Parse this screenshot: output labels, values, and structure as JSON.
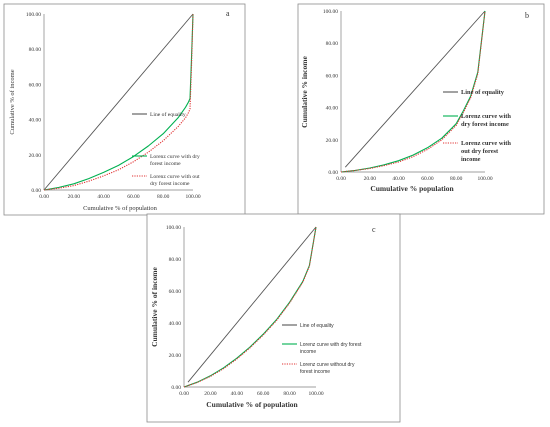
{
  "chart_data": [
    {
      "type": "line",
      "panel_label": "a",
      "xlabel": "Cumulative % of population",
      "ylabel": "Cumulative % of income",
      "xticks": [
        "0.00",
        "20.00",
        "40.00",
        "60.00",
        "80.00",
        "100.00"
      ],
      "yticks": [
        "0.00",
        "20.00",
        "40.00",
        "60.00",
        "80.00",
        "100.00"
      ],
      "xlim": [
        0,
        100
      ],
      "ylim": [
        0,
        100
      ],
      "grid": false,
      "legend_position": "right",
      "series": [
        {
          "name": "Line of equality",
          "color": "#555555",
          "style": "solid",
          "x": [
            0,
            100
          ],
          "y": [
            0,
            100
          ]
        },
        {
          "name": "Lorenz curve with dry forest income",
          "color": "#00b050",
          "style": "solid",
          "x": [
            0,
            10,
            20,
            30,
            40,
            50,
            60,
            70,
            80,
            90,
            95,
            97,
            98,
            99,
            100
          ],
          "y": [
            0,
            1.5,
            3.5,
            6.5,
            10,
            14,
            19,
            25,
            32,
            41,
            47,
            50,
            52,
            75,
            100
          ]
        },
        {
          "name": "Lorenz curve with out dry forest income",
          "color": "#e03030",
          "style": "dotted",
          "x": [
            0,
            10,
            20,
            30,
            40,
            50,
            60,
            70,
            80,
            90,
            95,
            97,
            98,
            99,
            100
          ],
          "y": [
            0,
            1,
            2.5,
            5,
            8,
            11.5,
            16,
            21.5,
            28,
            36,
            41,
            44,
            46,
            70,
            100
          ]
        }
      ]
    },
    {
      "type": "line",
      "panel_label": "b",
      "xlabel": "Cumulative % population",
      "ylabel": "Cumulative % income",
      "xticks": [
        "0.00",
        "20.00",
        "40.00",
        "60.00",
        "80.00",
        "100.00"
      ],
      "yticks": [
        "0.00",
        "20.00",
        "40.00",
        "60.00",
        "80.00",
        "100.00"
      ],
      "xlim": [
        0,
        100
      ],
      "ylim": [
        0,
        100
      ],
      "grid": false,
      "legend_position": "right",
      "series": [
        {
          "name": "Line of equality",
          "color": "#555555",
          "style": "solid",
          "x": [
            3,
            100
          ],
          "y": [
            3,
            100
          ]
        },
        {
          "name": "Lorenz curve with dry forest income",
          "color": "#00b050",
          "style": "solid",
          "x": [
            0,
            10,
            20,
            30,
            40,
            50,
            60,
            70,
            80,
            85,
            90,
            95,
            100
          ],
          "y": [
            0,
            1,
            2.5,
            4.5,
            7,
            10.5,
            15,
            21,
            30,
            38,
            47,
            62,
            100
          ]
        },
        {
          "name": "Lorenz curve with out dry forest income",
          "color": "#e03030",
          "style": "dotted",
          "x": [
            0,
            10,
            20,
            30,
            40,
            50,
            60,
            70,
            80,
            85,
            90,
            95,
            100
          ],
          "y": [
            0,
            1,
            2.2,
            4,
            6.2,
            9.5,
            14,
            20,
            29,
            37,
            46,
            61,
            100
          ]
        }
      ]
    },
    {
      "type": "line",
      "panel_label": "c",
      "xlabel": "Cumulative % of population",
      "ylabel": "Cumulative % of income",
      "xticks": [
        "0.00",
        "20.00",
        "40.00",
        "60.00",
        "80.00",
        "100.00"
      ],
      "yticks": [
        "0.00",
        "20.00",
        "40.00",
        "60.00",
        "80.00",
        "100.00"
      ],
      "xlim": [
        0,
        100
      ],
      "ylim": [
        0,
        100
      ],
      "grid": false,
      "legend_position": "right",
      "series": [
        {
          "name": "Line of equality",
          "color": "#555555",
          "style": "solid",
          "x": [
            3,
            100
          ],
          "y": [
            3,
            100
          ]
        },
        {
          "name": "Lorenz curve with dry forest income",
          "color": "#00b050",
          "style": "solid",
          "x": [
            0,
            10,
            20,
            30,
            40,
            50,
            60,
            70,
            80,
            90,
            95,
            100
          ],
          "y": [
            0,
            3,
            7,
            12,
            18,
            25,
            33,
            42,
            53,
            66,
            76,
            100
          ]
        },
        {
          "name": "Lorenz curve without dry forest income",
          "color": "#e03030",
          "style": "dotted",
          "x": [
            0,
            10,
            20,
            30,
            40,
            50,
            60,
            70,
            80,
            90,
            95,
            100
          ],
          "y": [
            0,
            2.8,
            6.6,
            11.5,
            17.5,
            24.5,
            32.5,
            41.5,
            52.5,
            65.5,
            75.5,
            100
          ]
        }
      ]
    }
  ]
}
